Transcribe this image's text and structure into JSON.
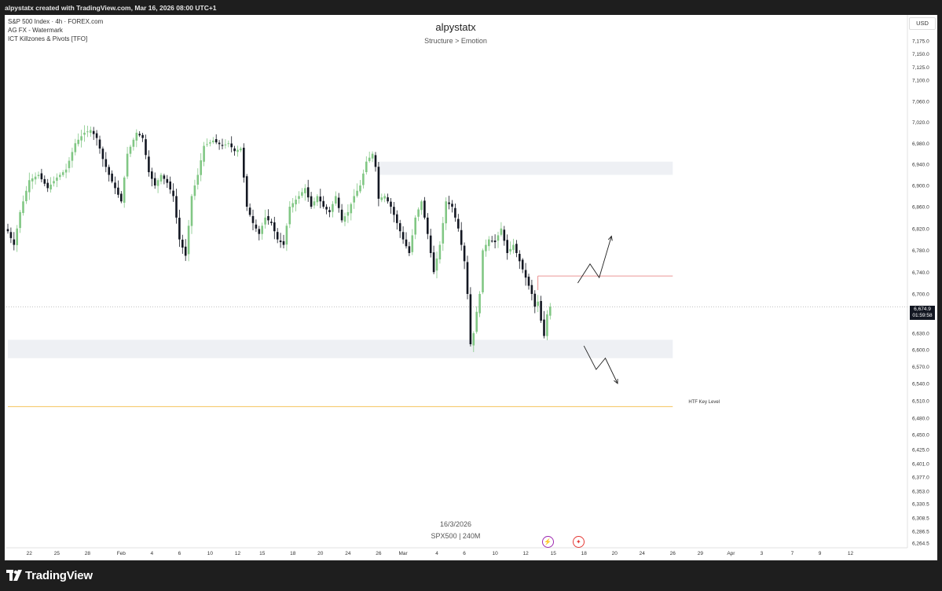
{
  "header": {
    "caption": "alpystatx created with TradingView.com, Mar 16, 2026 08:00 UTC+1"
  },
  "legend": {
    "line1": "S&P 500 Index · 4h · FOREX.com",
    "line2": "AG FX - Watermark",
    "line3": "ICT Killzones & Pivots [TFO]"
  },
  "watermark": {
    "title": "alpystatx",
    "subtitle": "Structure > Emotion",
    "date": "16/3/2026",
    "symbol": "SPX500 | 240M"
  },
  "price_scale": {
    "currency": "USD",
    "last_price": "6,674.9",
    "countdown": "01:59:58"
  },
  "footer": {
    "brand": "TradingView"
  },
  "colors": {
    "bull": "#81c784",
    "bear": "#131722",
    "zone": "#eef0f4",
    "key_level": "#f5c35c",
    "resistance": "#e57373"
  },
  "chart_data": {
    "type": "candlestick",
    "symbol": "S&P 500 Index",
    "timeframe": "4h",
    "y_ticks": [
      "7,175.0",
      "7,150.0",
      "7,125.0",
      "7,100.0",
      "7,060.0",
      "7,020.0",
      "6,980.0",
      "6,940.0",
      "6,900.0",
      "6,860.0",
      "6,820.0",
      "6,780.0",
      "6,740.0",
      "6,700.0",
      "6,660.0",
      "6,630.0",
      "6,600.0",
      "6,570.0",
      "6,540.0",
      "6,510.0",
      "6,480.0",
      "6,450.0",
      "6,425.0",
      "6,401.0",
      "6,377.0",
      "6,353.0",
      "6,330.5",
      "6,308.5",
      "6,286.5",
      "6,264.5"
    ],
    "x_ticks": [
      {
        "label": "22",
        "bar": 7
      },
      {
        "label": "25",
        "bar": 16
      },
      {
        "label": "28",
        "bar": 26
      },
      {
        "label": "Feb",
        "bar": 37
      },
      {
        "label": "4",
        "bar": 47
      },
      {
        "label": "6",
        "bar": 56
      },
      {
        "label": "10",
        "bar": 66
      },
      {
        "label": "12",
        "bar": 75
      },
      {
        "label": "15",
        "bar": 83
      },
      {
        "label": "18",
        "bar": 93
      },
      {
        "label": "20",
        "bar": 102
      },
      {
        "label": "24",
        "bar": 111
      },
      {
        "label": "26",
        "bar": 121
      },
      {
        "label": "Mar",
        "bar": 129
      },
      {
        "label": "4",
        "bar": 140
      },
      {
        "label": "6",
        "bar": 149
      },
      {
        "label": "10",
        "bar": 159
      },
      {
        "label": "12",
        "bar": 169
      },
      {
        "label": "15",
        "bar": 178
      },
      {
        "label": "18",
        "bar": 188
      },
      {
        "label": "20",
        "bar": 198
      },
      {
        "label": "24",
        "bar": 207
      },
      {
        "label": "26",
        "bar": 217
      },
      {
        "label": "29",
        "bar": 226
      },
      {
        "label": "Apr",
        "bar": 236
      },
      {
        "label": "3",
        "bar": 246
      },
      {
        "label": "7",
        "bar": 256
      },
      {
        "label": "9",
        "bar": 265
      },
      {
        "label": "12",
        "bar": 275
      }
    ],
    "anchors": [
      [
        0,
        6815
      ],
      [
        2,
        6790
      ],
      [
        4,
        6850
      ],
      [
        7,
        6910
      ],
      [
        10,
        6920
      ],
      [
        13,
        6895
      ],
      [
        16,
        6915
      ],
      [
        19,
        6930
      ],
      [
        22,
        6980
      ],
      [
        25,
        7000
      ],
      [
        27,
        7005
      ],
      [
        29,
        6990
      ],
      [
        31,
        6950
      ],
      [
        33,
        6920
      ],
      [
        35,
        6895
      ],
      [
        37,
        6870
      ],
      [
        39,
        6960
      ],
      [
        42,
        7000
      ],
      [
        44,
        6990
      ],
      [
        46,
        6925
      ],
      [
        48,
        6900
      ],
      [
        50,
        6920
      ],
      [
        52,
        6905
      ],
      [
        54,
        6880
      ],
      [
        56,
        6800
      ],
      [
        58,
        6770
      ],
      [
        60,
        6880
      ],
      [
        62,
        6920
      ],
      [
        64,
        6975
      ],
      [
        67,
        6985
      ],
      [
        70,
        6975
      ],
      [
        72,
        6980
      ],
      [
        74,
        6965
      ],
      [
        76,
        6970
      ],
      [
        78,
        6860
      ],
      [
        80,
        6830
      ],
      [
        82,
        6810
      ],
      [
        84,
        6840
      ],
      [
        86,
        6830
      ],
      [
        88,
        6800
      ],
      [
        90,
        6790
      ],
      [
        92,
        6860
      ],
      [
        95,
        6880
      ],
      [
        97,
        6895
      ],
      [
        99,
        6860
      ],
      [
        101,
        6880
      ],
      [
        103,
        6860
      ],
      [
        105,
        6850
      ],
      [
        107,
        6880
      ],
      [
        109,
        6835
      ],
      [
        111,
        6850
      ],
      [
        113,
        6880
      ],
      [
        115,
        6900
      ],
      [
        117,
        6945
      ],
      [
        119,
        6960
      ],
      [
        120,
        6935
      ],
      [
        121,
        6875
      ],
      [
        123,
        6880
      ],
      [
        125,
        6860
      ],
      [
        127,
        6830
      ],
      [
        129,
        6800
      ],
      [
        131,
        6775
      ],
      [
        133,
        6840
      ],
      [
        135,
        6870
      ],
      [
        137,
        6810
      ],
      [
        139,
        6740
      ],
      [
        141,
        6790
      ],
      [
        143,
        6870
      ],
      [
        145,
        6860
      ],
      [
        147,
        6820
      ],
      [
        149,
        6760
      ],
      [
        150,
        6700
      ],
      [
        151,
        6610
      ],
      [
        152,
        6630
      ],
      [
        154,
        6700
      ],
      [
        155,
        6780
      ],
      [
        157,
        6800
      ],
      [
        159,
        6795
      ],
      [
        161,
        6820
      ],
      [
        163,
        6775
      ],
      [
        165,
        6790
      ],
      [
        167,
        6760
      ],
      [
        169,
        6730
      ],
      [
        171,
        6700
      ],
      [
        172,
        6675
      ],
      [
        173,
        6685
      ],
      [
        174,
        6650
      ],
      [
        175,
        6625
      ],
      [
        176,
        6660
      ],
      [
        177,
        6675
      ]
    ],
    "zones": [
      {
        "from_bar": 121,
        "to_bar": 217,
        "high": 6945,
        "low": 6920
      },
      {
        "from_bar": 0,
        "to_bar": 217,
        "high": 6618,
        "low": 6585
      }
    ],
    "levels": [
      {
        "name": "current-price",
        "value": 6674.9,
        "style": "dotted"
      },
      {
        "name": "htf-key-level",
        "value": 6500,
        "label": "HTF Key Level",
        "from_bar": 0,
        "to_bar": 217
      },
      {
        "name": "resistance-line",
        "value": 6733,
        "from_bar": 173,
        "to_bar": 217
      }
    ],
    "projections": [
      {
        "name": "bullish-path",
        "points": [
          [
            186,
            6720
          ],
          [
            190,
            6755
          ],
          [
            193,
            6730
          ],
          [
            197,
            6806
          ]
        ]
      },
      {
        "name": "bearish-path",
        "points": [
          [
            188,
            6607
          ],
          [
            192,
            6565
          ],
          [
            195,
            6585
          ],
          [
            199,
            6540
          ]
        ]
      }
    ],
    "events": [
      {
        "name": "lightning-event",
        "bar": 176,
        "glyph": "⚡",
        "color": "#9c27b0"
      },
      {
        "name": "us-flag-event",
        "bar": 186,
        "glyph": "✦",
        "color": "#e53935"
      }
    ]
  }
}
